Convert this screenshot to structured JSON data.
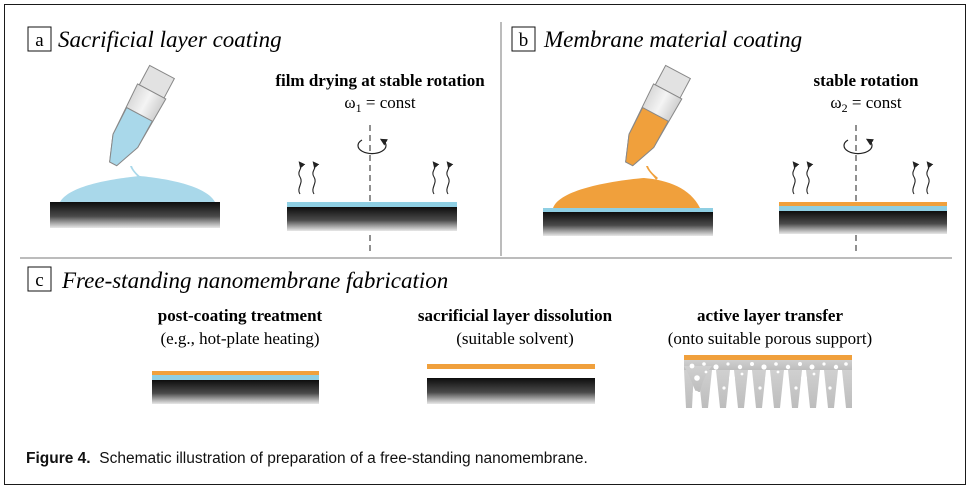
{
  "panel_a": {
    "letter": "a",
    "title": "Sacrificial layer coating",
    "step_label": "film drying at stable rotation",
    "omega_symbol": "ω",
    "omega_sub": "1",
    "omega_rest": " = const"
  },
  "panel_b": {
    "letter": "b",
    "title": "Membrane material coating",
    "step_label": "stable rotation",
    "omega_symbol": "ω",
    "omega_sub": "2",
    "omega_rest": " = const"
  },
  "panel_c": {
    "letter": "c",
    "title": "Free-standing nanomembrane fabrication",
    "steps": [
      {
        "label": "post-coating treatment",
        "sublabel": "(e.g., hot-plate heating)"
      },
      {
        "label": "sacrificial layer dissolution",
        "sublabel": "(suitable solvent)"
      },
      {
        "label": "active layer transfer",
        "sublabel": "(onto suitable porous support)"
      }
    ]
  },
  "caption": {
    "figure_label": "Figure 4.",
    "text": "Schematic illustration of preparation of a free-standing nanomembrane."
  },
  "colors": {
    "sacrificial_blue": "#8fcfe3",
    "membrane_orange": "#f0a03c",
    "substrate_dark": "#151515",
    "porous_gray": "#c8c8c8"
  }
}
